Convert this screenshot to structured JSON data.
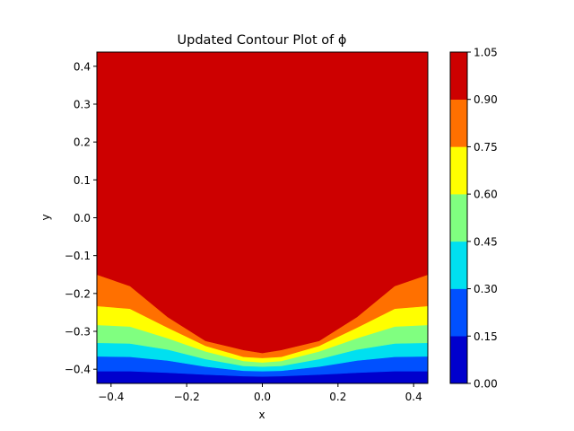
{
  "chart_data": {
    "type": "contourf",
    "title": "Updated Contour Plot of ϕ",
    "xlabel": "x",
    "ylabel": "y",
    "xlim": [
      -0.4375,
      0.4375
    ],
    "ylim": [
      -0.4375,
      0.4375
    ],
    "xticks": [
      -0.4,
      -0.2,
      0.0,
      0.2,
      0.4
    ],
    "xtick_labels": [
      "−0.4",
      "−0.2",
      "0.0",
      "0.2",
      "0.4"
    ],
    "yticks": [
      -0.4,
      -0.3,
      -0.2,
      -0.1,
      0.0,
      0.1,
      0.2,
      0.3,
      0.4
    ],
    "ytick_labels": [
      "−0.4",
      "−0.3",
      "−0.2",
      "−0.1",
      "0.0",
      "0.1",
      "0.2",
      "0.3",
      "0.4"
    ],
    "colormap": "jet",
    "levels": [
      0.0,
      0.15,
      0.3,
      0.45,
      0.6,
      0.75,
      0.9,
      1.05
    ],
    "colorbar_tick_labels": [
      "0.00",
      "0.15",
      "0.30",
      "0.45",
      "0.60",
      "0.75",
      "0.90",
      "1.05"
    ],
    "level_colors": [
      "#0000cd",
      "#0050ff",
      "#00e0f0",
      "#80ff80",
      "#ffff00",
      "#ff7000",
      "#cd0000"
    ],
    "boundary_x": [
      -0.4375,
      -0.35,
      -0.25,
      -0.15,
      -0.05,
      0.0,
      0.05,
      0.15,
      0.25,
      0.35,
      0.4375
    ],
    "boundaries": [
      {
        "level": 0.15,
        "y": [
          -0.405,
          -0.405,
          -0.409,
          -0.414,
          -0.418,
          -0.419,
          -0.418,
          -0.414,
          -0.409,
          -0.405,
          -0.405
        ]
      },
      {
        "level": 0.3,
        "y": [
          -0.366,
          -0.367,
          -0.377,
          -0.393,
          -0.404,
          -0.405,
          -0.404,
          -0.393,
          -0.377,
          -0.367,
          -0.366
        ]
      },
      {
        "level": 0.45,
        "y": [
          -0.33,
          -0.332,
          -0.348,
          -0.373,
          -0.391,
          -0.393,
          -0.391,
          -0.373,
          -0.348,
          -0.332,
          -0.33
        ]
      },
      {
        "level": 0.6,
        "y": [
          -0.283,
          -0.287,
          -0.318,
          -0.353,
          -0.378,
          -0.382,
          -0.378,
          -0.353,
          -0.318,
          -0.287,
          -0.283
        ]
      },
      {
        "level": 0.75,
        "y": [
          -0.233,
          -0.24,
          -0.29,
          -0.338,
          -0.367,
          -0.37,
          -0.367,
          -0.338,
          -0.29,
          -0.24,
          -0.233
        ]
      },
      {
        "level": 0.9,
        "y": [
          -0.15,
          -0.18,
          -0.262,
          -0.325,
          -0.349,
          -0.357,
          -0.349,
          -0.325,
          -0.262,
          -0.18,
          -0.15
        ]
      }
    ]
  }
}
